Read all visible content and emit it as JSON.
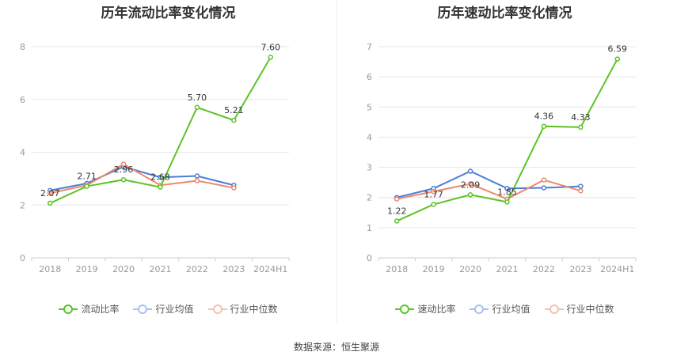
{
  "source_text": "数据来源：恒生聚源",
  "colors": {
    "main": "#5cc427",
    "avg": "#4a7fd6",
    "median": "#f0876a",
    "grid": "#e6e6e6",
    "axis": "#cccccc"
  },
  "chart_data": [
    {
      "type": "line",
      "title": "历年流动比率变化情况",
      "categories": [
        "2018",
        "2019",
        "2020",
        "2021",
        "2022",
        "2023",
        "2024H1"
      ],
      "ylim": [
        0,
        8
      ],
      "yticks": [
        "0",
        "2",
        "4",
        "6",
        "8"
      ],
      "legend_position": "bottom",
      "grid": true,
      "series": [
        {
          "name": "流动比率",
          "color": "#5cc427",
          "values": [
            2.07,
            2.71,
            2.96,
            2.68,
            5.7,
            5.21,
            7.6
          ],
          "labels": [
            "2.07",
            "2.71",
            "2.96",
            "2.68",
            "5.70",
            "5.21",
            "7.60"
          ]
        },
        {
          "name": "行业均值",
          "color": "#4a7fd6",
          "values": [
            2.55,
            2.82,
            3.45,
            3.05,
            3.1,
            2.75,
            null
          ]
        },
        {
          "name": "行业中位数",
          "color": "#f0876a",
          "values": [
            2.45,
            2.75,
            3.55,
            2.75,
            2.92,
            2.65,
            null
          ]
        }
      ]
    },
    {
      "type": "line",
      "title": "历年速动比率变化情况",
      "categories": [
        "2018",
        "2019",
        "2020",
        "2021",
        "2022",
        "2023",
        "2024H1"
      ],
      "ylim": [
        0,
        7
      ],
      "yticks": [
        "0",
        "1",
        "2",
        "3",
        "4",
        "5",
        "6",
        "7"
      ],
      "legend_position": "bottom",
      "grid": true,
      "series": [
        {
          "name": "速动比率",
          "color": "#5cc427",
          "values": [
            1.22,
            1.77,
            2.09,
            1.85,
            4.36,
            4.33,
            6.59
          ],
          "labels": [
            "1.22",
            "1.77",
            "2.09",
            "1.85",
            "4.36",
            "4.33",
            "6.59"
          ]
        },
        {
          "name": "行业均值",
          "color": "#4a7fd6",
          "values": [
            2.0,
            2.3,
            2.87,
            2.3,
            2.32,
            2.37,
            null
          ]
        },
        {
          "name": "行业中位数",
          "color": "#f0876a",
          "values": [
            1.95,
            2.2,
            2.45,
            1.95,
            2.58,
            2.22,
            null
          ]
        }
      ]
    }
  ]
}
